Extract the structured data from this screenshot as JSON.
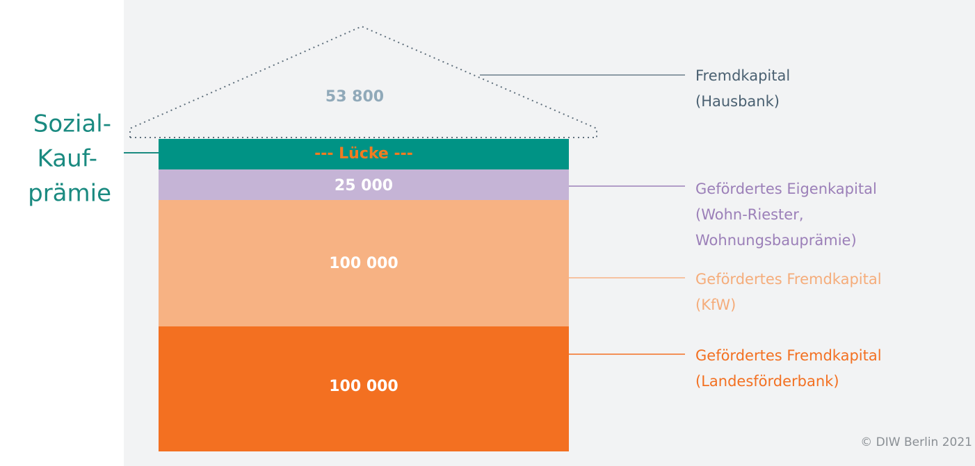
{
  "callout": {
    "lines": [
      "Sozial-",
      "Kauf-",
      "prämie"
    ]
  },
  "roof": {
    "value": "53 800"
  },
  "layers": [
    {
      "label": "--- Lücke ---"
    },
    {
      "value": "25 000"
    },
    {
      "value": "100 000"
    },
    {
      "value": "100 000"
    }
  ],
  "legend": [
    {
      "title": "Fremdkapital",
      "lines": [
        "(Hausbank)"
      ]
    },
    {
      "title": "Gefördertes Eigenkapital",
      "lines": [
        "(Wohn-Riester,",
        "Wohnungsbauprämie)"
      ]
    },
    {
      "title": "Gefördertes Fremdkapital",
      "lines": [
        "(KfW)"
      ]
    },
    {
      "title": "Gefördertes Fremdkapital",
      "lines": [
        "(Landesförderbank)"
      ]
    }
  ],
  "credit": "© DIW Berlin 2021"
}
